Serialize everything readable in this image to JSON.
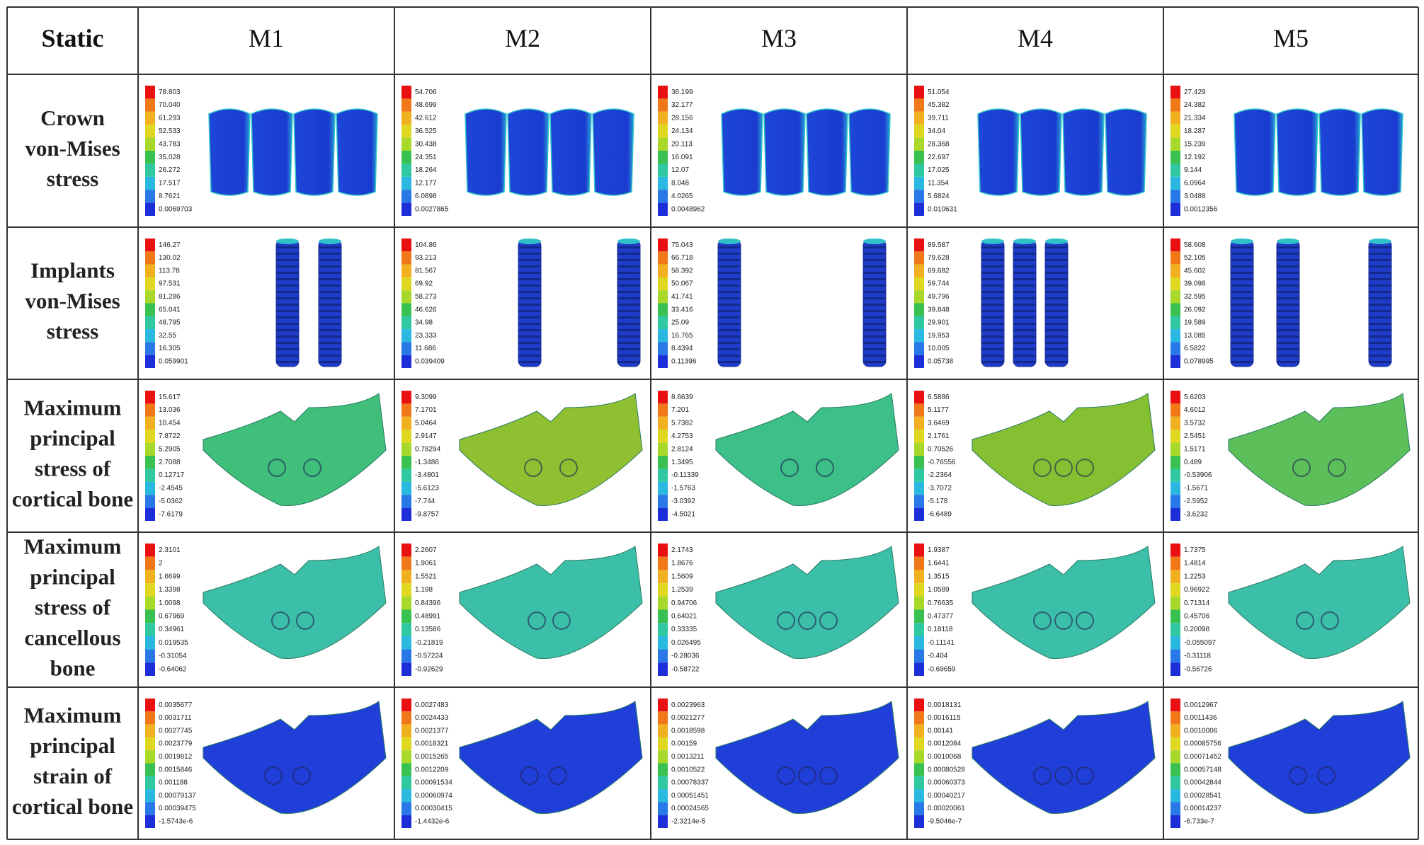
{
  "header": {
    "corner": "Static",
    "columns": [
      "M1",
      "M2",
      "M3",
      "M4",
      "M5"
    ]
  },
  "rows": [
    {
      "label": [
        "Crown",
        "von-Mises",
        "stress"
      ],
      "legends": [
        [
          "78.803",
          "70.040",
          "61.293",
          "52.533",
          "43.783",
          "35.028",
          "26.272",
          "17.517",
          "8.7621",
          "0.0069703"
        ],
        [
          "54.706",
          "48.699",
          "42.612",
          "36.525",
          "30.438",
          "24.351",
          "18.264",
          "12.177",
          "6.0898",
          "0.0027865"
        ],
        [
          "36.199",
          "32.177",
          "28.156",
          "24.134",
          "20.113",
          "16.091",
          "12.07",
          "8.048",
          "4.0265",
          "0.0048962"
        ],
        [
          "51.054",
          "45.382",
          "39.711",
          "34.04",
          "28.368",
          "22.697",
          "17.025",
          "11.354",
          "5.6824",
          "0.010631"
        ],
        [
          "27.429",
          "24.382",
          "21.334",
          "18.287",
          "15.239",
          "12.192",
          "9.144",
          "6.0964",
          "3.0488",
          "0.0012356"
        ]
      ]
    },
    {
      "label": [
        "Implants",
        "von-Mises",
        "stress"
      ],
      "legends": [
        [
          "146.27",
          "130.02",
          "113.78",
          "97.531",
          "81.286",
          "65.041",
          "48.795",
          "32.55",
          "16.305",
          "0.059901"
        ],
        [
          "104.86",
          "93.213",
          "81.567",
          "69.92",
          "58.273",
          "46.626",
          "34.98",
          "23.333",
          "11.686",
          "0.039409"
        ],
        [
          "75.043",
          "66.718",
          "58.392",
          "50.067",
          "41.741",
          "33.416",
          "25.09",
          "16.765",
          "8.4394",
          "0.11396"
        ],
        [
          "89.587",
          "79.628",
          "69.682",
          "59.744",
          "49.796",
          "39.848",
          "29.901",
          "19.953",
          "10.005",
          "0.05738"
        ],
        [
          "58.608",
          "52.105",
          "45.602",
          "39.098",
          "32.595",
          "26.092",
          "19.589",
          "13.085",
          "6.5822",
          "0.078995"
        ]
      ]
    },
    {
      "label": [
        "Maximum",
        "principal",
        "stress of",
        "cortical bone"
      ],
      "legends": [
        [
          "15.617",
          "13.036",
          "10.454",
          "7.8722",
          "5.2905",
          "2.7088",
          "0.12717",
          "-2.4545",
          "-5.0362",
          "-7.6179"
        ],
        [
          "9.3099",
          "7.1701",
          "5.0464",
          "2.9147",
          "0.78294",
          "-1.3486",
          "-3.4801",
          "-5.6123",
          "-7.744",
          "-9.8757"
        ],
        [
          "8.6639",
          "7.201",
          "5.7382",
          "4.2753",
          "2.8124",
          "1.3495",
          "-0.11339",
          "-1.5763",
          "-3.0392",
          "-4.5021"
        ],
        [
          "6.5886",
          "5.1177",
          "3.6469",
          "2.1761",
          "0.70526",
          "-0.76556",
          "-2.2364",
          "-3.7072",
          "-5.178",
          "-6.6489"
        ],
        [
          "5.6203",
          "4.6012",
          "3.5732",
          "2.5451",
          "1.5171",
          "0.489",
          "-0.53906",
          "-1.5671",
          "-2.5952",
          "-3.6232"
        ]
      ]
    },
    {
      "label": [
        "Maximum",
        "principal",
        "stress of",
        "cancellous",
        "bone"
      ],
      "legends": [
        [
          "2.3101",
          "2",
          "1.6699",
          "1.3398",
          "1.0098",
          "0.67969",
          "0.34961",
          "0.019535",
          "-0.31054",
          "-0.64062"
        ],
        [
          "2.2607",
          "1.9061",
          "1.5521",
          "1.198",
          "0.84396",
          "0.48991",
          "0.13586",
          "-0.21819",
          "-0.57224",
          "-0.92629"
        ],
        [
          "2.1743",
          "1.8676",
          "1.5609",
          "1.2539",
          "0.94706",
          "0.64021",
          "0.33335",
          "0.026495",
          "-0.28036",
          "-0.58722"
        ],
        [
          "1.9387",
          "1.6441",
          "1.3515",
          "1.0589",
          "0.76635",
          "0.47377",
          "0.18118",
          "-0.11141",
          "-0.404",
          "-0.69659"
        ],
        [
          "1.7375",
          "1.4814",
          "1.2253",
          "0.96922",
          "0.71314",
          "0.45706",
          "0.20098",
          "-0.055097",
          "-0.31118",
          "-0.56726"
        ]
      ]
    },
    {
      "label": [
        "Maximum",
        "principal",
        "strain of",
        "cortical bone"
      ],
      "legends": [
        [
          "0.0035677",
          "0.0031711",
          "0.0027745",
          "0.0023779",
          "0.0019812",
          "0.0015846",
          "0.001188",
          "0.00079137",
          "0.00039475",
          "-1.5743e-6"
        ],
        [
          "0.0027483",
          "0.0024433",
          "0.0021377",
          "0.0018321",
          "0.0015265",
          "0.0012209",
          "0.00091534",
          "0.00060974",
          "0.00030415",
          "-1.4432e-6"
        ],
        [
          "0.0023963",
          "0.0021277",
          "0.0018598",
          "0.00159",
          "0.0013211",
          "0.0010522",
          "0.00078337",
          "0.00051451",
          "0.00024565",
          "-2.3214e-5"
        ],
        [
          "0.0018131",
          "0.0016115",
          "0.00141",
          "0.0012084",
          "0.0010068",
          "0.00080528",
          "0.00060373",
          "0.00040217",
          "0.00020061",
          "-9.5046e-7"
        ],
        [
          "0.0012967",
          "0.0011436",
          "0.0010006",
          "0.00085756",
          "0.00071452",
          "0.00057148",
          "0.00042844",
          "0.00028541",
          "0.00014237",
          "-6.733e-7"
        ]
      ]
    }
  ]
}
